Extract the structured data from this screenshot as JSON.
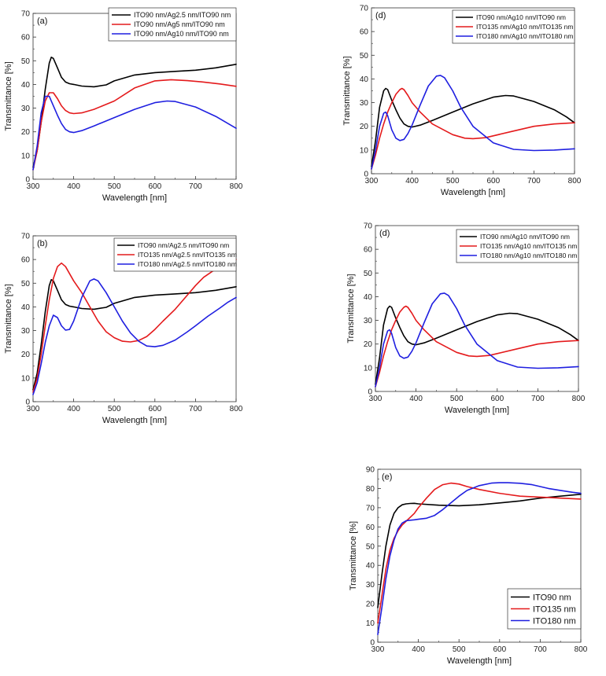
{
  "chart_data": [
    {
      "type": "line",
      "panel_label": "(a)",
      "xlabel": "Wavelength [nm]",
      "ylabel": "Transmittance [%]",
      "xlim": [
        300,
        800
      ],
      "ylim": [
        0,
        70
      ],
      "xticks": [
        300,
        400,
        500,
        600,
        700,
        800
      ],
      "yticks": [
        0,
        10,
        20,
        30,
        40,
        50,
        60,
        70
      ],
      "legend_position": "top-right",
      "series": [
        {
          "name": "ITO90 nm/Ag2.5 nm/ITO90 nm",
          "color": "#000000",
          "x": [
            300,
            310,
            320,
            330,
            340,
            345,
            350,
            360,
            370,
            380,
            390,
            400,
            420,
            450,
            480,
            500,
            550,
            600,
            650,
            700,
            750,
            800
          ],
          "y": [
            5,
            12,
            24,
            38,
            49,
            51.5,
            51,
            47,
            43,
            41,
            40.3,
            40,
            39.3,
            39,
            39.8,
            41.5,
            44,
            45,
            45.5,
            46,
            47,
            48.5
          ]
        },
        {
          "name": "ITO90 nm/Ag5 nm/ITO90 nm",
          "color": "#e41a1c",
          "x": [
            300,
            310,
            320,
            330,
            340,
            350,
            360,
            370,
            380,
            390,
            400,
            420,
            450,
            500,
            550,
            600,
            640,
            680,
            720,
            760,
            800
          ],
          "y": [
            4,
            12,
            24,
            33,
            36.5,
            36.5,
            34,
            31,
            29,
            28,
            27.7,
            28,
            29.5,
            33,
            38.5,
            41.5,
            42,
            41.6,
            41,
            40.2,
            39.2
          ]
        },
        {
          "name": "ITO90 nm/Ag10 nm/ITO90 nm",
          "color": "#1f1fe0",
          "x": [
            300,
            310,
            320,
            330,
            340,
            350,
            360,
            370,
            380,
            390,
            400,
            420,
            450,
            500,
            550,
            600,
            630,
            650,
            700,
            750,
            800
          ],
          "y": [
            4,
            14,
            28,
            35,
            35,
            31,
            27,
            23.5,
            21,
            20,
            19.7,
            20.5,
            22.5,
            26,
            29.5,
            32.3,
            33,
            32.8,
            30.5,
            26.5,
            21.5
          ]
        }
      ]
    },
    {
      "type": "line",
      "panel_label": "(b)",
      "xlabel": "Wavelength [nm]",
      "ylabel": "Transmittance [%]",
      "xlim": [
        300,
        800
      ],
      "ylim": [
        0,
        70
      ],
      "xticks": [
        300,
        400,
        500,
        600,
        700,
        800
      ],
      "yticks": [
        0,
        10,
        20,
        30,
        40,
        50,
        60,
        70
      ],
      "legend_position": "top-right",
      "series": [
        {
          "name": "ITO90 nm/Ag2.5 nm/ITO90 nm",
          "color": "#000000",
          "x": [
            300,
            310,
            320,
            330,
            340,
            345,
            350,
            360,
            370,
            380,
            390,
            400,
            420,
            450,
            480,
            500,
            550,
            600,
            650,
            700,
            750,
            800
          ],
          "y": [
            5,
            12,
            24,
            38,
            49,
            51.5,
            51,
            47,
            43,
            41,
            40.3,
            40,
            39.3,
            39,
            39.8,
            41.5,
            44,
            45,
            45.5,
            46,
            47,
            48.5
          ]
        },
        {
          "name": "ITO135 nm/Ag2.5 nm/ITO135 nm",
          "color": "#e41a1c",
          "x": [
            300,
            310,
            320,
            330,
            340,
            350,
            360,
            370,
            380,
            390,
            400,
            420,
            440,
            460,
            480,
            500,
            520,
            540,
            560,
            580,
            600,
            620,
            650,
            680,
            700,
            720,
            750,
            780,
            800
          ],
          "y": [
            4,
            10,
            20,
            32,
            43,
            52,
            57,
            58.5,
            57,
            54,
            51,
            46,
            40,
            34,
            29.5,
            27,
            25.5,
            25.2,
            25.8,
            27.5,
            30.5,
            34,
            39,
            45,
            49,
            52.5,
            56,
            58.5,
            60
          ]
        },
        {
          "name": "ITO180 nm/Ag2.5 nm/ITO180 nm",
          "color": "#1f1fe0",
          "x": [
            300,
            310,
            320,
            330,
            340,
            350,
            360,
            370,
            380,
            390,
            400,
            420,
            440,
            450,
            460,
            480,
            500,
            520,
            540,
            560,
            580,
            600,
            620,
            650,
            680,
            700,
            730,
            760,
            780,
            800
          ],
          "y": [
            3,
            8,
            16,
            25,
            32,
            36.5,
            35.5,
            32,
            30.2,
            30.5,
            34,
            44,
            51,
            51.8,
            51,
            46,
            40,
            34,
            29,
            25.5,
            23.5,
            23.2,
            23.8,
            26,
            29.5,
            32,
            36,
            39.5,
            42,
            44
          ]
        }
      ]
    },
    {
      "type": "line",
      "panel_label": "(d)",
      "xlabel": "Wavelength [nm]",
      "ylabel": "Transmittance [%]",
      "xlim": [
        300,
        800
      ],
      "ylim": [
        0,
        70
      ],
      "xticks": [
        300,
        400,
        500,
        600,
        700,
        800
      ],
      "yticks": [
        0,
        10,
        20,
        30,
        40,
        50,
        60,
        70
      ],
      "legend_position": "top-right",
      "series": [
        {
          "name": "ITO90 nm/Ag10 nm/ITO90 nm",
          "color": "#000000",
          "x": [
            300,
            310,
            320,
            330,
            335,
            340,
            350,
            360,
            370,
            380,
            390,
            400,
            420,
            450,
            500,
            550,
            600,
            630,
            650,
            700,
            750,
            780,
            800
          ],
          "y": [
            3,
            14,
            28,
            35,
            36,
            35.5,
            31,
            27,
            23.5,
            21,
            20,
            19.7,
            20.5,
            22.5,
            26,
            29.5,
            32.3,
            33,
            32.8,
            30.5,
            27,
            24,
            21.5
          ]
        },
        {
          "name": "ITO135 nm/Ag10 nm/ITO135 nm",
          "color": "#e41a1c",
          "x": [
            300,
            310,
            320,
            330,
            340,
            350,
            360,
            370,
            375,
            380,
            390,
            400,
            420,
            450,
            500,
            530,
            550,
            580,
            600,
            650,
            700,
            750,
            800
          ],
          "y": [
            2,
            8,
            15,
            21,
            26,
            30,
            33.5,
            35.5,
            36,
            35.5,
            33,
            30,
            26,
            21,
            16.5,
            15,
            14.8,
            15.2,
            16,
            18,
            20,
            21,
            21.5
          ]
        },
        {
          "name": "ITO180 nm/Ag10 nm/ITO180 nm",
          "color": "#1f1fe0",
          "x": [
            300,
            310,
            320,
            330,
            335,
            340,
            350,
            360,
            370,
            380,
            390,
            400,
            420,
            440,
            460,
            470,
            480,
            500,
            520,
            550,
            600,
            650,
            700,
            750,
            800
          ],
          "y": [
            2,
            10,
            20,
            25.5,
            26,
            24.5,
            18.5,
            15,
            14,
            14.5,
            17,
            20.5,
            29,
            37,
            41.2,
            41.5,
            40.5,
            35,
            28,
            20,
            13,
            10.3,
            9.8,
            10,
            10.5
          ]
        }
      ]
    },
    {
      "type": "line",
      "panel_label": "(d)",
      "xlabel": "Wavelength [nm]",
      "ylabel": "Transmittance [%]",
      "xlim": [
        300,
        800
      ],
      "ylim": [
        0,
        70
      ],
      "xticks": [
        300,
        400,
        500,
        600,
        700,
        800
      ],
      "yticks": [
        0,
        10,
        20,
        30,
        40,
        50,
        60,
        70
      ],
      "legend_position": "top-right",
      "series": [
        {
          "name": "ITO90 nm/Ag10 nm/ITO90 nm",
          "color": "#000000",
          "x": [
            300,
            310,
            320,
            330,
            335,
            340,
            350,
            360,
            370,
            380,
            390,
            400,
            420,
            450,
            500,
            550,
            600,
            630,
            650,
            700,
            750,
            780,
            800
          ],
          "y": [
            3,
            14,
            28,
            35,
            36,
            35.5,
            31,
            27,
            23.5,
            21,
            20,
            19.7,
            20.5,
            22.5,
            26,
            29.5,
            32.3,
            33,
            32.8,
            30.5,
            27,
            24,
            21.5
          ]
        },
        {
          "name": "ITO135 nm/Ag10 nm/ITO135 nm",
          "color": "#e41a1c",
          "x": [
            300,
            310,
            320,
            330,
            340,
            350,
            360,
            370,
            375,
            380,
            390,
            400,
            420,
            450,
            500,
            530,
            550,
            580,
            600,
            650,
            700,
            750,
            800
          ],
          "y": [
            2,
            8,
            15,
            21,
            26,
            30,
            33.5,
            35.5,
            36,
            35.5,
            33,
            30,
            26,
            21,
            16.5,
            15,
            14.8,
            15.2,
            16,
            18,
            20,
            21,
            21.5
          ]
        },
        {
          "name": "ITO180 nm/Ag10 nm/ITO180 nm",
          "color": "#1f1fe0",
          "x": [
            300,
            310,
            320,
            330,
            335,
            340,
            350,
            360,
            370,
            380,
            390,
            400,
            420,
            440,
            460,
            470,
            480,
            500,
            520,
            550,
            600,
            650,
            700,
            750,
            800
          ],
          "y": [
            2,
            10,
            20,
            25.5,
            26,
            24.5,
            18.5,
            15,
            14,
            14.5,
            17,
            20.5,
            29,
            37,
            41.2,
            41.5,
            40.5,
            35,
            28,
            20,
            13,
            10.3,
            9.8,
            10,
            10.5
          ]
        }
      ]
    },
    {
      "type": "line",
      "panel_label": "(e)",
      "xlabel": "Wavelength [nm]",
      "ylabel": "Transmittance [%]",
      "xlim": [
        300,
        800
      ],
      "ylim": [
        0,
        90
      ],
      "xticks": [
        300,
        400,
        500,
        600,
        700,
        800
      ],
      "yticks": [
        0,
        10,
        20,
        30,
        40,
        50,
        60,
        70,
        80,
        90
      ],
      "legend_position": "bottom-right",
      "series": [
        {
          "name": "ITO90 nm",
          "color": "#000000",
          "x": [
            300,
            310,
            320,
            330,
            340,
            350,
            360,
            370,
            380,
            390,
            400,
            450,
            500,
            550,
            600,
            650,
            700,
            750,
            800
          ],
          "y": [
            18,
            35,
            50,
            61,
            67,
            70,
            71.5,
            72,
            72.2,
            72.3,
            72,
            71.3,
            71,
            71.5,
            72.5,
            73.5,
            75,
            76,
            77
          ]
        },
        {
          "name": "ITO135 nm",
          "color": "#e41a1c",
          "x": [
            300,
            310,
            320,
            330,
            340,
            350,
            360,
            370,
            380,
            390,
            400,
            420,
            440,
            460,
            480,
            500,
            520,
            550,
            600,
            650,
            700,
            750,
            800
          ],
          "y": [
            10,
            24,
            38,
            48,
            54,
            58,
            61,
            63,
            65,
            67,
            70,
            75,
            79.5,
            82,
            82.8,
            82.3,
            81,
            79.5,
            77.5,
            76,
            75.5,
            75,
            74.5
          ]
        },
        {
          "name": "ITO180 nm",
          "color": "#1f1fe0",
          "x": [
            300,
            310,
            320,
            330,
            340,
            350,
            360,
            370,
            380,
            390,
            400,
            420,
            440,
            460,
            480,
            500,
            520,
            550,
            580,
            600,
            620,
            650,
            680,
            700,
            720,
            750,
            780,
            800
          ],
          "y": [
            4,
            18,
            33,
            45,
            53,
            59,
            62,
            63.2,
            63.5,
            63.7,
            64,
            64.5,
            66,
            69,
            72.5,
            76,
            79,
            81.5,
            82.8,
            83,
            83,
            82.7,
            82,
            81,
            80,
            79,
            78,
            77.5
          ]
        }
      ]
    }
  ]
}
